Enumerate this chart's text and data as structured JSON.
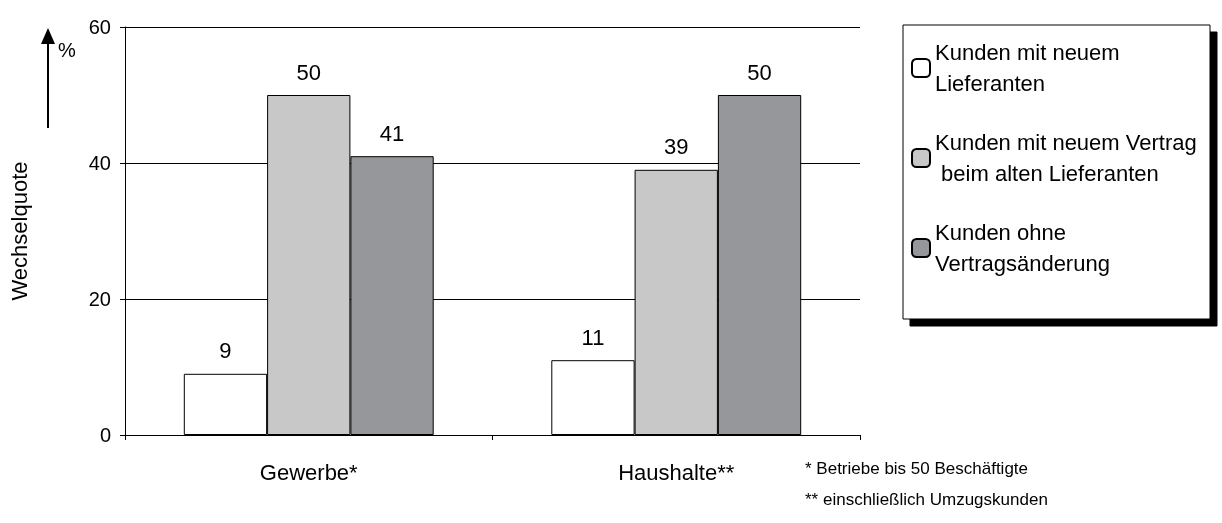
{
  "chart_data": {
    "type": "bar",
    "ylabel": "Wechselquote",
    "categories": [
      "Gewerbe*",
      "Haushalte**"
    ],
    "series": [
      {
        "name": "Kunden mit neuem Lieferanten",
        "color": "#ffffff",
        "values": [
          9,
          11
        ]
      },
      {
        "name": "Kunden mit neuem Vertrag beim alten Lieferanten",
        "color": "#c8c8c8",
        "values": [
          50,
          39
        ]
      },
      {
        "name": "Kunden ohne Vertragsänderung",
        "color": "#96979b",
        "values": [
          41,
          50
        ]
      }
    ],
    "ylim": [
      0,
      60
    ],
    "yticks": [
      0,
      20,
      40,
      60
    ],
    "grid": "y",
    "legend": "right",
    "data_labels": true,
    "annotations": [
      "%",
      "* Betriebe bis 50 Beschäftigte",
      "** einschließlich Umzugskunden"
    ]
  }
}
